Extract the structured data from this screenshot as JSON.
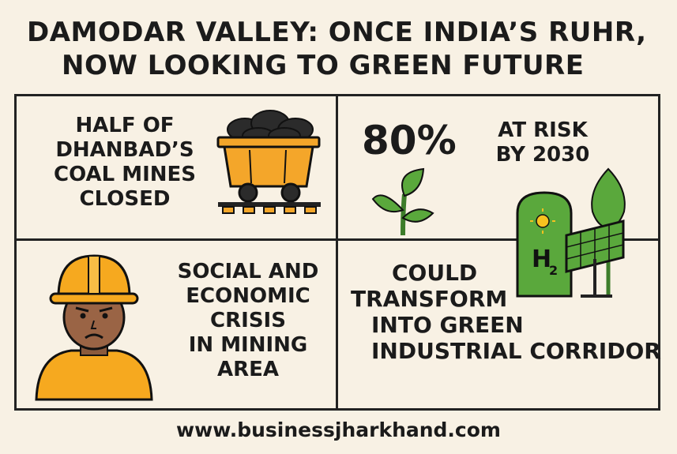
{
  "title": {
    "line1": "DAMODAR VALLEY: ONCE INDIA’S RUHR,",
    "line2": "NOW LOOKING TO GREEN FUTURE"
  },
  "panels": {
    "mines": {
      "lines": [
        "HALF OF",
        "DHANBAD’S",
        "COAL MINES",
        "CLOSED"
      ],
      "icon": "coal-cart-icon"
    },
    "risk": {
      "stat": "80%",
      "lines": [
        "AT RISK",
        "BY 2030"
      ],
      "icons": [
        "sprout-icon",
        "hydrogen-solar-icon"
      ],
      "h2_label": "H",
      "h2_sub": "2"
    },
    "crisis": {
      "lines": [
        "SOCIAL AND",
        "ECONOMIC",
        "CRISIS",
        "IN MINING",
        "AREA"
      ],
      "icon": "miner-icon"
    },
    "transform": {
      "lines": [
        "COULD",
        "TRANSFORM",
        "INTO GREEN",
        "INDUSTRIAL CORRIDOR"
      ]
    }
  },
  "colors": {
    "background": "#f8f1e4",
    "cart": "#f4a62a",
    "helmet": "#f6a91f",
    "green": "#5aa83c"
  },
  "footer": "www.businessjharkhand.com"
}
